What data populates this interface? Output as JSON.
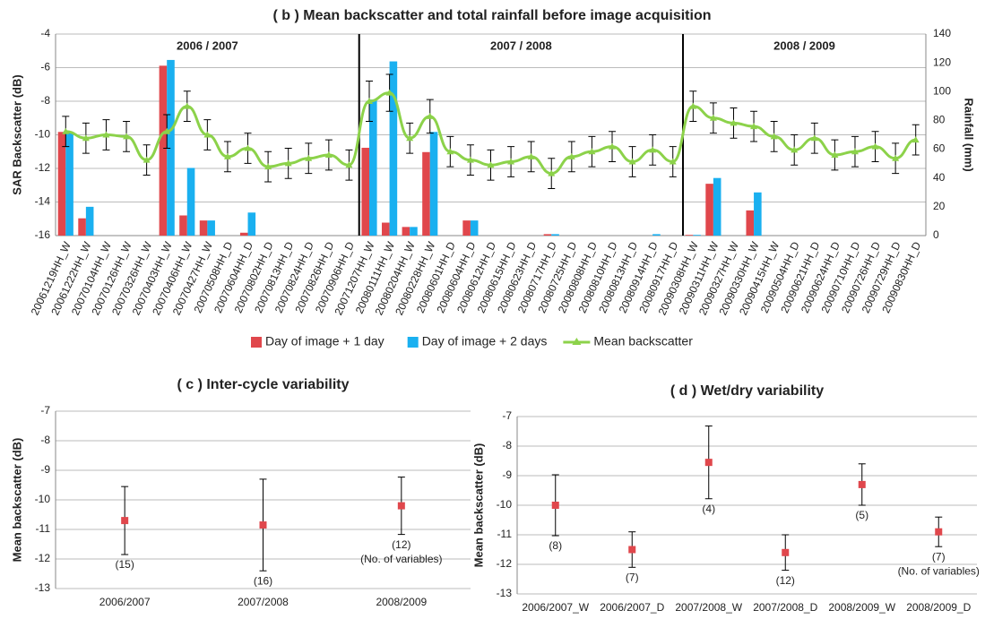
{
  "chart_data": [
    {
      "type": "combo",
      "title": "( b ) Mean backscatter and total rainfall before image acquisition",
      "ylabel": "SAR Backscatter (dB)",
      "y2label": "Rainfall (mm)",
      "annotations": [
        "2006 / 2007",
        "2007 / 2008",
        "2008 / 2009"
      ],
      "categories": [
        "20061219HH_W",
        "20061222HH_W",
        "20070104HH_W",
        "20070126HH_W",
        "20070326HH_W",
        "20070403HH_W",
        "20070406HH_W",
        "20070427HH_W",
        "20070508HH_D",
        "20070604HH_D",
        "20070802HH_D",
        "20070813HH_D",
        "20070824HH_D",
        "20070826HH_D",
        "20070906HH_D",
        "20071207HH_W",
        "20080111HH_W",
        "20080204HH_W",
        "20080228HH_W",
        "20080601HH_D",
        "20080604HH_D",
        "20080612HH_D",
        "20080615HH_D",
        "20080623HH_D",
        "20080717HH_D",
        "20080725HH_D",
        "20080808HH_D",
        "20080810HH_D",
        "20080813HH_D",
        "20080914HH_D",
        "20080917HH_D",
        "20090308HH_W",
        "20090311HH_W",
        "20090327HH_W",
        "20090330HH_W",
        "20090415HH_W",
        "20090504HH_D",
        "20090621HH_D",
        "20090624HH_D",
        "20090710HH_D",
        "20090726HH_D",
        "20090729HH_D",
        "20090830HH_D"
      ],
      "series": [
        {
          "name": "Day of image + 1 day",
          "type": "bar",
          "axis": "y2",
          "color": "#e0474c",
          "values": [
            72,
            12,
            0,
            0,
            0,
            118,
            14,
            10.5,
            0,
            2,
            0,
            0,
            0,
            0,
            0,
            61,
            9,
            6,
            58,
            0,
            10.5,
            0,
            0,
            0,
            1,
            0,
            0,
            0,
            0,
            0,
            0,
            0.5,
            36,
            0,
            17.5,
            0,
            0,
            0,
            0,
            0,
            0,
            0,
            0
          ]
        },
        {
          "name": "Day of image + 2 days",
          "type": "bar",
          "axis": "y2",
          "color": "#1ab0f0",
          "values": [
            72,
            20,
            0,
            0,
            0,
            122,
            47,
            10.5,
            0,
            16,
            0,
            0,
            0,
            0,
            0,
            94.5,
            121,
            6,
            72,
            0,
            10.5,
            0,
            0,
            0,
            1,
            0,
            0,
            0,
            0,
            1,
            0,
            0.5,
            40,
            0,
            30,
            0,
            0,
            0,
            0,
            0,
            0,
            0,
            0
          ]
        },
        {
          "name": "Mean backscatter",
          "type": "line",
          "color": "#8cd24a",
          "values": [
            -9.8,
            -10.2,
            -10.0,
            -10.1,
            -11.5,
            -9.8,
            -8.3,
            -10.0,
            -11.3,
            -10.8,
            -11.9,
            -11.7,
            -11.4,
            -11.2,
            -11.8,
            -8.0,
            -7.5,
            -10.2,
            -8.9,
            -11.0,
            -11.5,
            -11.8,
            -11.6,
            -11.3,
            -12.3,
            -11.3,
            -11.0,
            -10.7,
            -11.6,
            -10.9,
            -11.6,
            -8.3,
            -9.0,
            -9.3,
            -9.5,
            -10.1,
            -10.9,
            -10.2,
            -11.2,
            -11.0,
            -10.7,
            -11.4,
            -10.3
          ],
          "errors": [
            0.9,
            0.9,
            0.9,
            0.9,
            0.9,
            1.0,
            0.9,
            0.9,
            0.9,
            0.9,
            0.9,
            0.9,
            0.9,
            0.9,
            0.9,
            1.2,
            1.1,
            0.9,
            1.0,
            0.9,
            0.9,
            0.9,
            0.9,
            0.9,
            0.9,
            0.9,
            0.9,
            0.9,
            0.9,
            0.9,
            0.9,
            0.9,
            0.9,
            0.9,
            0.9,
            0.9,
            0.9,
            0.9,
            0.9,
            0.9,
            0.9,
            0.9,
            0.9
          ]
        }
      ],
      "ylim": [
        -16,
        -4
      ],
      "yticks": [
        -16,
        -14,
        -12,
        -10,
        -8,
        -6,
        -4
      ],
      "y2lim": [
        0,
        140
      ],
      "y2ticks": [
        0,
        20,
        40,
        60,
        80,
        100,
        120,
        140
      ],
      "grid": true,
      "legend": "bottom"
    },
    {
      "type": "errorbar",
      "title": "( c ) Inter-cycle variability",
      "ylabel": "Mean backscatter (dB)",
      "categories": [
        "2006/2007",
        "2007/2008",
        "2008/2009"
      ],
      "color": "#e0474c",
      "values": [
        -10.7,
        -10.85,
        -10.2
      ],
      "errors": [
        1.15,
        1.55,
        0.97
      ],
      "point_labels": [
        "(15)",
        "(16)",
        "(12)"
      ],
      "note": "(No. of variables)",
      "ylim": [
        -13,
        -7
      ],
      "yticks": [
        -13,
        -12,
        -11,
        -10,
        -9,
        -8,
        -7
      ],
      "grid": true
    },
    {
      "type": "errorbar",
      "title": "( d ) Wet/dry variability",
      "ylabel": "Mean backscatter (dB)",
      "categories": [
        "2006/2007_W",
        "2006/2007_D",
        "2007/2008_W",
        "2007/2008_D",
        "2008/2009_W",
        "2008/2009_D"
      ],
      "color": "#e0474c",
      "values": [
        -10.0,
        -11.5,
        -8.55,
        -11.6,
        -9.3,
        -10.9
      ],
      "errors": [
        1.03,
        0.6,
        1.23,
        0.6,
        0.7,
        0.5
      ],
      "point_labels": [
        "(8)",
        "(7)",
        "(4)",
        "(12)",
        "(5)",
        "(7)"
      ],
      "note": "(No. of variables)",
      "ylim": [
        -13,
        -7
      ],
      "yticks": [
        -13,
        -12,
        -11,
        -10,
        -9,
        -8,
        -7
      ],
      "grid": true
    }
  ]
}
